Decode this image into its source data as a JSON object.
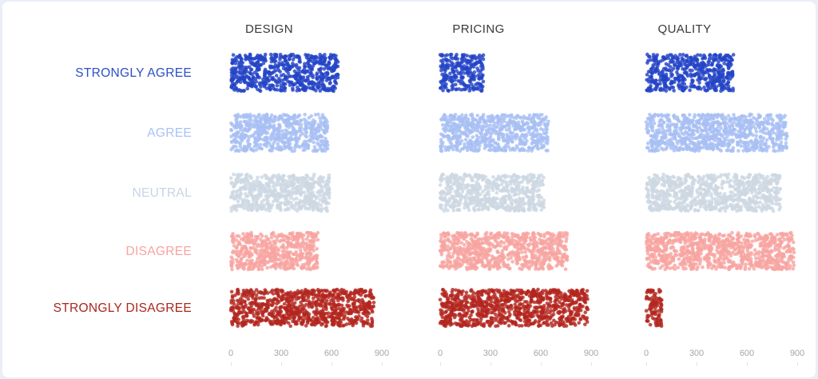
{
  "page": {
    "background": "#e9eef7",
    "card_background": "#ffffff"
  },
  "chart_data": {
    "type": "scatter",
    "subtype": "jittered-dot-strip-plot",
    "title": "",
    "columns": [
      "DESIGN",
      "PRICING",
      "QUALITY"
    ],
    "rows": [
      "STRONGLY AGREE",
      "AGREE",
      "NEUTRAL",
      "DISAGREE",
      "STRONGLY DISAGREE"
    ],
    "series": [
      {
        "name": "DESIGN",
        "values": [
          640,
          580,
          585,
          520,
          850
        ]
      },
      {
        "name": "PRICING",
        "values": [
          255,
          645,
          620,
          755,
          880
        ]
      },
      {
        "name": "QUALITY",
        "values": [
          520,
          840,
          800,
          880,
          90
        ]
      }
    ],
    "x_ticks": [
      "0",
      "300",
      "600",
      "900"
    ],
    "x_tick_values": [
      0,
      300,
      600,
      900
    ],
    "xlim": [
      0,
      950
    ],
    "grid": false,
    "legend": false,
    "dot_colors": [
      "#2444c7",
      "#a8bff4",
      "#cdd8e3",
      "#f8a5a1",
      "#b3261e"
    ],
    "label_colors": [
      "#2b50c4",
      "#a9c1f4",
      "#c8d4e3",
      "#f6a4a2",
      "#aa261f"
    ],
    "header_color": "#35393d",
    "tick_color": "#a2a6ad"
  }
}
